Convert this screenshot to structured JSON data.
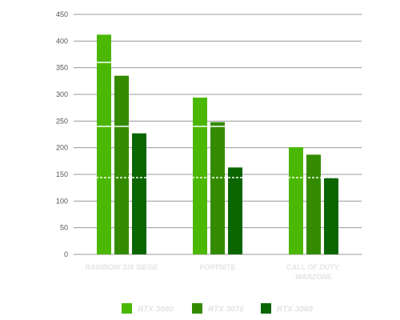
{
  "chart_data": {
    "type": "bar",
    "categories": [
      "RAINBOW SIX SIEGE",
      "FORTNITE",
      "CALL OF DUTY: WARZONE"
    ],
    "series": [
      {
        "name": "RTX 3080",
        "values": [
          412,
          294,
          201
        ],
        "color": "#4ab700"
      },
      {
        "name": "RTX 3070",
        "values": [
          335,
          248,
          187
        ],
        "color": "#358b00"
      },
      {
        "name": "RTX 3060",
        "values": [
          227,
          163,
          143
        ],
        "color": "#0b6500"
      }
    ],
    "yticks": [
      "0",
      "50",
      "100",
      "150",
      "200",
      "250",
      "300",
      "350",
      "400",
      "450"
    ],
    "ylim": [
      0,
      450
    ],
    "grid": true,
    "legend": "bottom",
    "reference_lines": [
      {
        "value": 360,
        "style": "solid",
        "color": "#ffffff"
      },
      {
        "value": 240,
        "style": "solid",
        "color": "#ffffff"
      },
      {
        "value": 144,
        "style": "dashed",
        "color": "#ffffff"
      }
    ],
    "title": "",
    "xlabel": "",
    "ylabel": ""
  }
}
